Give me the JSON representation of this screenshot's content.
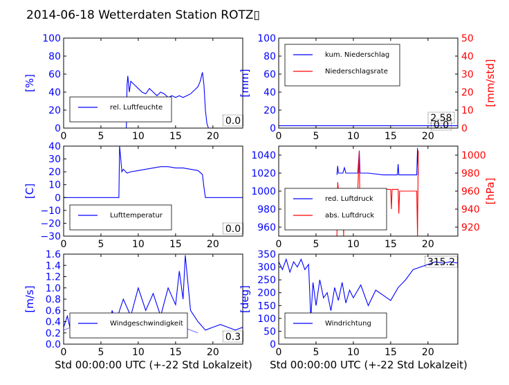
{
  "title": "2014-06-18 Wetterdaten Station ROTZ▯",
  "xlabel": "Std 00:00:00 UTC (+-22 Std Lokalzeit)",
  "colors": {
    "blue": "#0000ff",
    "red": "#ff0000",
    "light_blue": "#8080ff",
    "axis": "#000000"
  },
  "chart_data": [
    {
      "type": "line",
      "name": "humidity",
      "ylabel": "[%]",
      "xlim": [
        0,
        24
      ],
      "ylim": [
        0,
        100
      ],
      "xticks": [
        "0",
        "5",
        "10",
        "15",
        "20"
      ],
      "yticks": [
        "0",
        "20",
        "40",
        "60",
        "80",
        "100"
      ],
      "legend_position": "lower-left",
      "series": [
        {
          "name": "rel. Luftfeuchte",
          "color": "#0000ff",
          "x": [
            0,
            8.4,
            8.5,
            8.6,
            8.8,
            9.0,
            9.5,
            10.0,
            10.5,
            11.0,
            11.5,
            12.0,
            12.5,
            13.0,
            13.5,
            14.0,
            14.5,
            15.0,
            15.5,
            16.0,
            16.5,
            17.0,
            17.5,
            18.0,
            18.3,
            18.6,
            18.8,
            19.0,
            19.2,
            19.4,
            24
          ],
          "y": [
            0,
            0,
            48,
            58,
            40,
            52,
            48,
            44,
            40,
            38,
            44,
            40,
            36,
            40,
            38,
            34,
            36,
            34,
            36,
            34,
            36,
            38,
            42,
            46,
            52,
            62,
            48,
            20,
            5,
            0,
            0
          ]
        }
      ],
      "current_value": "0.0"
    },
    {
      "type": "line",
      "name": "precipitation",
      "ylabel": "[mm]",
      "ylabel_right": "[mm/std]",
      "xlim": [
        0,
        24
      ],
      "ylim": [
        0,
        100
      ],
      "ylim_right": [
        0,
        50
      ],
      "xticks": [
        "0",
        "5",
        "10",
        "15",
        "20"
      ],
      "yticks": [
        "0",
        "20",
        "40",
        "60",
        "80",
        "100"
      ],
      "yticks_right": [
        "0",
        "10",
        "20",
        "30",
        "40",
        "50"
      ],
      "legend_position": "upper-left",
      "series": [
        {
          "name": "kum. Niederschlag",
          "color": "#0000ff",
          "axis": "left",
          "x": [
            0,
            24
          ],
          "y": [
            2.58,
            2.58
          ]
        },
        {
          "name": "Niederschlagsrate",
          "color": "#ff0000",
          "axis": "right",
          "x": [
            0,
            24
          ],
          "y": [
            0,
            0
          ]
        }
      ],
      "current_values": [
        "2.58",
        "0.0"
      ]
    },
    {
      "type": "line",
      "name": "temperature",
      "ylabel": "[C]",
      "xlim": [
        0,
        24
      ],
      "ylim": [
        -30,
        40
      ],
      "xticks": [
        "0",
        "5",
        "10",
        "15",
        "20"
      ],
      "yticks": [
        "−30",
        "−20",
        "−10",
        "0",
        "10",
        "20",
        "30",
        "40"
      ],
      "legend_position": "lower-left",
      "series": [
        {
          "name": "Lufttemperatur",
          "color": "#0000ff",
          "x": [
            0,
            7.4,
            7.5,
            7.6,
            7.8,
            8.0,
            8.5,
            9.0,
            10.0,
            11.0,
            12.0,
            13.0,
            14.0,
            15.0,
            16.0,
            17.0,
            18.0,
            18.6,
            18.8,
            19.0,
            19.2,
            24
          ],
          "y": [
            0,
            0,
            40,
            34,
            20,
            22,
            19,
            20,
            21,
            22,
            23,
            24,
            24,
            23,
            23,
            22,
            21,
            18,
            8,
            0,
            0,
            0
          ]
        }
      ],
      "current_value": "0.0"
    },
    {
      "type": "line",
      "name": "pressure",
      "ylabel_right": "[hPa]",
      "xlim": [
        0,
        24
      ],
      "ylim": [
        950,
        1050
      ],
      "ylim_right": [
        910,
        1010
      ],
      "xticks": [
        "0",
        "5",
        "10",
        "15",
        "20"
      ],
      "yticks": [
        "960",
        "980",
        "1000",
        "1020",
        "1040"
      ],
      "yticks_right": [
        "920",
        "940",
        "960",
        "980",
        "1000"
      ],
      "legend_position": "lower-left",
      "series": [
        {
          "name": "red. Luftdruck",
          "color": "#0000ff",
          "axis": "left",
          "x": [
            7.8,
            7.9,
            8.0,
            8.6,
            8.8,
            9.0,
            10.6,
            10.8,
            10.9,
            11.0,
            12.0,
            14.0,
            15.9,
            16.0,
            16.1,
            18.5,
            18.6,
            18.7
          ],
          "y": [
            1018,
            1028,
            1020,
            1020,
            1026,
            1020,
            1020,
            1045,
            1020,
            1020,
            1020,
            1018,
            1018,
            1030,
            1018,
            1018,
            1048,
            1018
          ]
        },
        {
          "name": "abs. Luftdruck",
          "color": "#ff0000",
          "axis": "right",
          "x": [
            7.8,
            7.9,
            8.0,
            8.6,
            8.7,
            8.8,
            10.6,
            10.8,
            10.9,
            11.0,
            14.0,
            15.0,
            15.1,
            15.2,
            16.0,
            16.1,
            16.2,
            18.5,
            18.6,
            18.7
          ],
          "y": [
            910,
            970,
            962,
            962,
            910,
            962,
            962,
            1005,
            925,
            962,
            962,
            962,
            940,
            962,
            962,
            935,
            960,
            960,
            910,
            1005
          ]
        }
      ]
    },
    {
      "type": "line",
      "name": "windspeed",
      "ylabel": "[m/s]",
      "xlim": [
        0,
        24
      ],
      "ylim": [
        0,
        1.6
      ],
      "xticks": [
        "0",
        "5",
        "10",
        "15",
        "20"
      ],
      "yticks": [
        "0.0",
        "0.2",
        "0.4",
        "0.6",
        "0.8",
        "1.0",
        "1.2",
        "1.4",
        "1.6"
      ],
      "legend_position": "lower-left",
      "series": [
        {
          "name": "Windgeschwindigkeit",
          "color": "#0000ff",
          "x": [
            0,
            0.5,
            1,
            2,
            3,
            4,
            5,
            6,
            6.5,
            7,
            8,
            9,
            10,
            11,
            12,
            13,
            14,
            15,
            15.5,
            16,
            16.3,
            17,
            18,
            19,
            20,
            21,
            22,
            23,
            24
          ],
          "y": [
            0.3,
            0.5,
            0.2,
            0.35,
            0.2,
            0.25,
            0.2,
            0.15,
            0.6,
            0.4,
            0.8,
            0.5,
            1.0,
            0.6,
            0.9,
            0.5,
            1.0,
            0.7,
            1.3,
            0.8,
            1.58,
            0.6,
            0.4,
            0.25,
            0.3,
            0.35,
            0.3,
            0.25,
            0.3
          ]
        },
        {
          "name": "",
          "color": "#8080ff",
          "x": [
            0,
            1,
            2,
            3,
            4,
            5,
            6,
            7,
            8,
            9,
            10,
            11,
            12,
            13,
            14,
            15,
            16,
            17,
            18
          ],
          "y": [
            0.25,
            0.3,
            0.35,
            0.3,
            0.35,
            0.25,
            0.2,
            0.4,
            0.35,
            0.3,
            0.35,
            0.3,
            0.35,
            0.3,
            0.35,
            0.3,
            0.3,
            0.25,
            0.2
          ]
        }
      ],
      "current_value": "0.3"
    },
    {
      "type": "line",
      "name": "winddirection",
      "ylabel": "[deg]",
      "xlim": [
        0,
        24
      ],
      "ylim": [
        0,
        350
      ],
      "xticks": [
        "0",
        "5",
        "10",
        "15",
        "20"
      ],
      "yticks": [
        "0",
        "50",
        "100",
        "150",
        "200",
        "250",
        "300",
        "350"
      ],
      "legend_position": "lower-left",
      "series": [
        {
          "name": "Windrichtung",
          "color": "#0000ff",
          "x": [
            0,
            0.5,
            1,
            1.5,
            2,
            2.5,
            3,
            3.5,
            4,
            4.3,
            4.6,
            5,
            5.5,
            6,
            6.5,
            7,
            7.5,
            8,
            8.5,
            9,
            9.5,
            10,
            11,
            12,
            13,
            14,
            15,
            16,
            17,
            18,
            19,
            20,
            21,
            22,
            23,
            24
          ],
          "y": [
            320,
            290,
            330,
            280,
            320,
            300,
            330,
            290,
            310,
            100,
            240,
            150,
            250,
            180,
            200,
            130,
            220,
            170,
            240,
            160,
            210,
            180,
            230,
            150,
            210,
            190,
            170,
            220,
            250,
            290,
            300,
            310,
            320,
            315,
            320,
            315
          ]
        }
      ],
      "current_value": "315.2"
    }
  ]
}
